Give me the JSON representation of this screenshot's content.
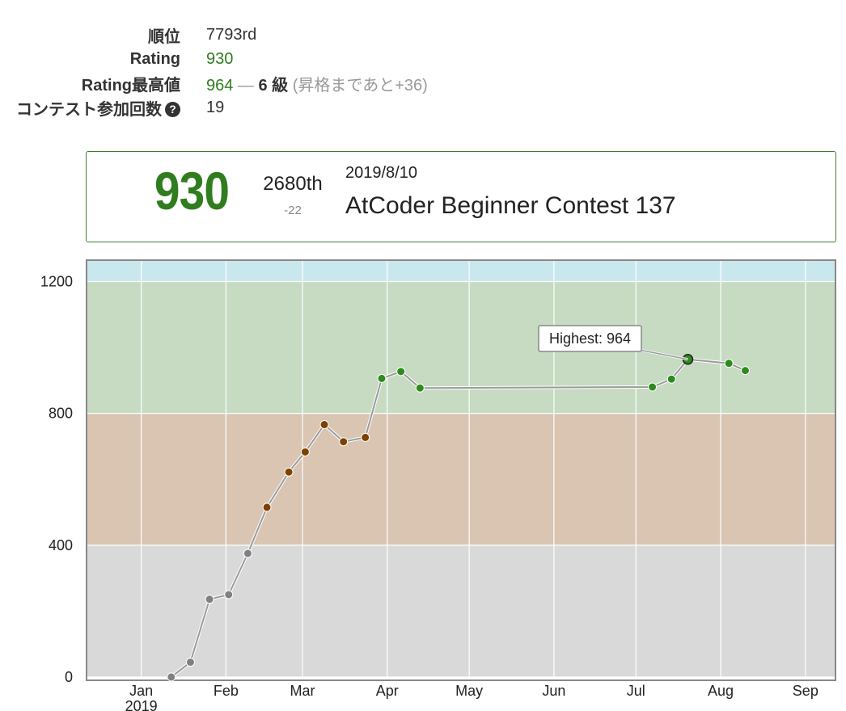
{
  "stats": {
    "rank_label": "順位",
    "rank_value": "7793rd",
    "rating_label": "Rating",
    "rating_value": "930",
    "highest_label": "Rating最高値",
    "highest_value": "964",
    "highest_sep": " — ",
    "highest_kyu": "6 級",
    "highest_note": "(昇格まであと+36)",
    "count_label": "コンテスト参加回数",
    "count_value": "19",
    "help_icon": "question-circle-icon"
  },
  "card": {
    "rating": "930",
    "place": "2680th",
    "diff": "-22",
    "date": "2019/8/10",
    "contest": "AtCoder Beginner Contest 137"
  },
  "chart_data": {
    "type": "line",
    "y_ticks": [
      "0",
      "400",
      "800",
      "1200"
    ],
    "ylim": [
      -10,
      1265
    ],
    "x_ticks": [
      {
        "label": "Jan",
        "sub": "2019",
        "date": "2019-01-01"
      },
      {
        "label": "Feb",
        "sub": "",
        "date": "2019-02-01"
      },
      {
        "label": "Mar",
        "sub": "",
        "date": "2019-03-01"
      },
      {
        "label": "Apr",
        "sub": "",
        "date": "2019-04-01"
      },
      {
        "label": "May",
        "sub": "",
        "date": "2019-05-01"
      },
      {
        "label": "Jun",
        "sub": "",
        "date": "2019-06-01"
      },
      {
        "label": "Jul",
        "sub": "",
        "date": "2019-07-01"
      },
      {
        "label": "Aug",
        "sub": "",
        "date": "2019-08-01"
      },
      {
        "label": "Sep",
        "sub": "",
        "date": "2019-09-01"
      }
    ],
    "xlim": [
      "2018-12-12",
      "2019-09-12"
    ],
    "bands": [
      {
        "from": 0,
        "to": 400,
        "color": "#d9d9d9"
      },
      {
        "from": 400,
        "to": 800,
        "color": "#d9c5b2"
      },
      {
        "from": 800,
        "to": 1200,
        "color": "#c6dbc2"
      },
      {
        "from": 1200,
        "to": 1600,
        "color": "#c9e8ed"
      }
    ],
    "colors": {
      "gray": "#808080",
      "brown": "#804000",
      "green": "#2f8a1e"
    },
    "series": [
      {
        "values": [
          {
            "date": "2019-01-12",
            "rating": 0
          },
          {
            "date": "2019-01-19",
            "rating": 45
          },
          {
            "date": "2019-01-26",
            "rating": 236
          },
          {
            "date": "2019-02-02",
            "rating": 250
          },
          {
            "date": "2019-02-09",
            "rating": 375
          },
          {
            "date": "2019-02-16",
            "rating": 515
          },
          {
            "date": "2019-02-24",
            "rating": 622
          },
          {
            "date": "2019-03-02",
            "rating": 683
          },
          {
            "date": "2019-03-09",
            "rating": 766
          },
          {
            "date": "2019-03-16",
            "rating": 714
          },
          {
            "date": "2019-03-24",
            "rating": 727
          },
          {
            "date": "2019-03-30",
            "rating": 906
          },
          {
            "date": "2019-04-06",
            "rating": 927
          },
          {
            "date": "2019-04-13",
            "rating": 877
          },
          {
            "date": "2019-07-07",
            "rating": 880
          },
          {
            "date": "2019-07-14",
            "rating": 904
          },
          {
            "date": "2019-07-20",
            "rating": 964
          },
          {
            "date": "2019-08-04",
            "rating": 952
          },
          {
            "date": "2019-08-10",
            "rating": 930
          }
        ]
      }
    ],
    "highest": {
      "label": "Highest: 964",
      "date": "2019-07-20",
      "rating": 964
    }
  }
}
